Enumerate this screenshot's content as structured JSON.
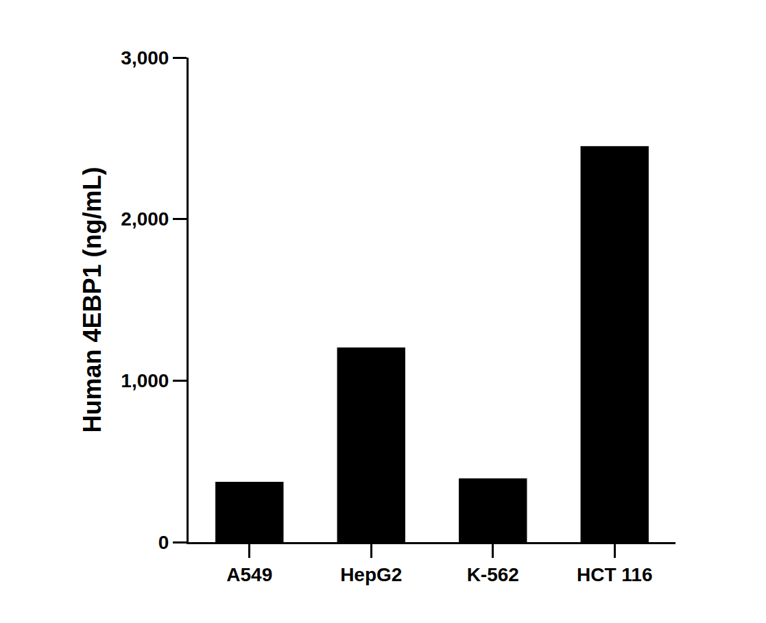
{
  "chart_data": {
    "type": "bar",
    "y_label": "Human 4EBP1 (ng/mL)",
    "categories": [
      "A549",
      "HepG2",
      "K-562",
      "HCT 116"
    ],
    "values": [
      373,
      1205,
      395,
      2452
    ],
    "color": "#000000",
    "ylim": [
      0,
      3000
    ],
    "yticks": [
      0,
      {
        "value": 1000,
        "label": "1,000"
      },
      {
        "value": 2000,
        "label": "2,000"
      },
      {
        "value": 3000,
        "label": "3,000"
      }
    ],
    "grid": false
  }
}
